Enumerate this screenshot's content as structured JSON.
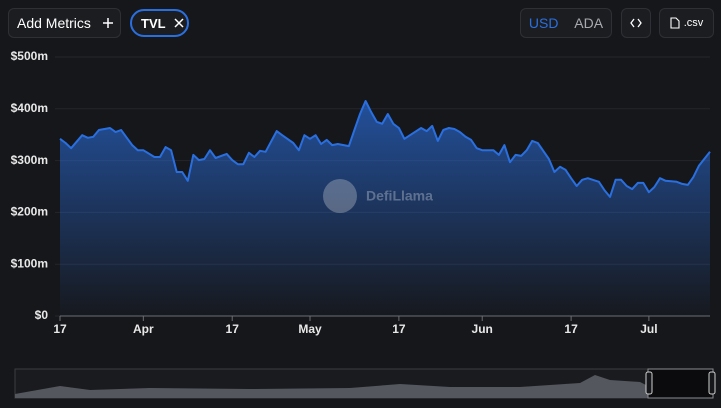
{
  "toolbar": {
    "add_metrics": "Add Metrics",
    "metric_chip": "TVL",
    "currencies": [
      "USD",
      "ADA"
    ],
    "csv": ".csv"
  },
  "chart_data": {
    "type": "area",
    "watermark": "DefiLlama",
    "x": [
      "Mar 17",
      "Mar 18",
      "Mar 19",
      "Mar 21",
      "Mar 22",
      "Mar 23",
      "Mar 24",
      "Mar 26",
      "Mar 27",
      "Mar 28",
      "Mar 30",
      "Mar 31",
      "Apr 1",
      "Apr 3",
      "Apr 4",
      "Apr 5",
      "Apr 6",
      "Apr 7",
      "Apr 8",
      "Apr 9",
      "Apr 10",
      "Apr 11",
      "Apr 12",
      "Apr 13",
      "Apr 14",
      "Apr 16",
      "Apr 17",
      "Apr 18",
      "Apr 19",
      "Apr 20",
      "Apr 21",
      "Apr 22",
      "Apr 23",
      "Apr 25",
      "Apr 26",
      "Apr 28",
      "Apr 29",
      "Apr 30",
      "May 1",
      "May 2",
      "May 3",
      "May 4",
      "May 5",
      "May 6",
      "May 8",
      "May 9",
      "May 10",
      "May 11",
      "May 12",
      "May 13",
      "May 14",
      "May 15",
      "May 16",
      "May 17",
      "May 18",
      "May 19",
      "May 21",
      "May 22",
      "May 23",
      "May 24",
      "May 25",
      "May 26",
      "May 27",
      "May 28",
      "May 29",
      "May 30",
      "May 31",
      "Jun 1",
      "Jun 3",
      "Jun 4",
      "Jun 5",
      "Jun 6",
      "Jun 7",
      "Jun 8",
      "Jun 9",
      "Jun 10",
      "Jun 11",
      "Jun 13",
      "Jun 14",
      "Jun 15",
      "Jun 16",
      "Jun 17",
      "Jun 18",
      "Jun 19",
      "Jun 20",
      "Jun 22",
      "Jun 23",
      "Jun 24",
      "Jun 25",
      "Jun 26",
      "Jun 27",
      "Jun 28",
      "Jun 29",
      "Jun 30",
      "Jul 1",
      "Jul 2",
      "Jul 3",
      "Jul 4",
      "Jul 6",
      "Jul 7",
      "Jul 8",
      "Jul 9",
      "Jul 10",
      "Jul 12"
    ],
    "series": [
      {
        "name": "TVL",
        "color": "#2a6fe0",
        "values": [
          342,
          334,
          324,
          349,
          344,
          346,
          359,
          363,
          355,
          359,
          330,
          320,
          320,
          307,
          307,
          326,
          320,
          278,
          278,
          261,
          311,
          301,
          303,
          320,
          305,
          313,
          301,
          293,
          293,
          315,
          307,
          319,
          317,
          357,
          349,
          334,
          320,
          349,
          342,
          349,
          332,
          340,
          330,
          332,
          328,
          359,
          390,
          415,
          394,
          375,
          371,
          390,
          371,
          363,
          342,
          349,
          363,
          357,
          367,
          338,
          359,
          363,
          361,
          355,
          346,
          340,
          324,
          320,
          320,
          311,
          330,
          297,
          311,
          309,
          320,
          338,
          334,
          303,
          278,
          288,
          282,
          266,
          251,
          263,
          266,
          259,
          243,
          230,
          263,
          263,
          251,
          245,
          257,
          257,
          239,
          249,
          266,
          261,
          259,
          255,
          253,
          268,
          290,
          317
        ]
      }
    ],
    "xlim": [
      "Mar 17",
      "Jul 12"
    ],
    "xticks": [
      {
        "value": "Mar 17",
        "label": "17"
      },
      {
        "value": "Apr 1",
        "label": "Apr"
      },
      {
        "value": "Apr 17",
        "label": "17"
      },
      {
        "value": "May 1",
        "label": "May"
      },
      {
        "value": "May 17",
        "label": "17"
      },
      {
        "value": "Jun 1",
        "label": "Jun"
      },
      {
        "value": "Jun 17",
        "label": "17"
      },
      {
        "value": "Jul 1",
        "label": "Jul"
      }
    ],
    "ylim": [
      0,
      500
    ],
    "yticks": [
      {
        "value": 0,
        "label": "$0"
      },
      {
        "value": 100,
        "label": "$100m"
      },
      {
        "value": 200,
        "label": "$200m"
      },
      {
        "value": 300,
        "label": "$300m"
      },
      {
        "value": 400,
        "label": "$400m"
      },
      {
        "value": 500,
        "label": "$500m"
      }
    ],
    "grid": true
  }
}
